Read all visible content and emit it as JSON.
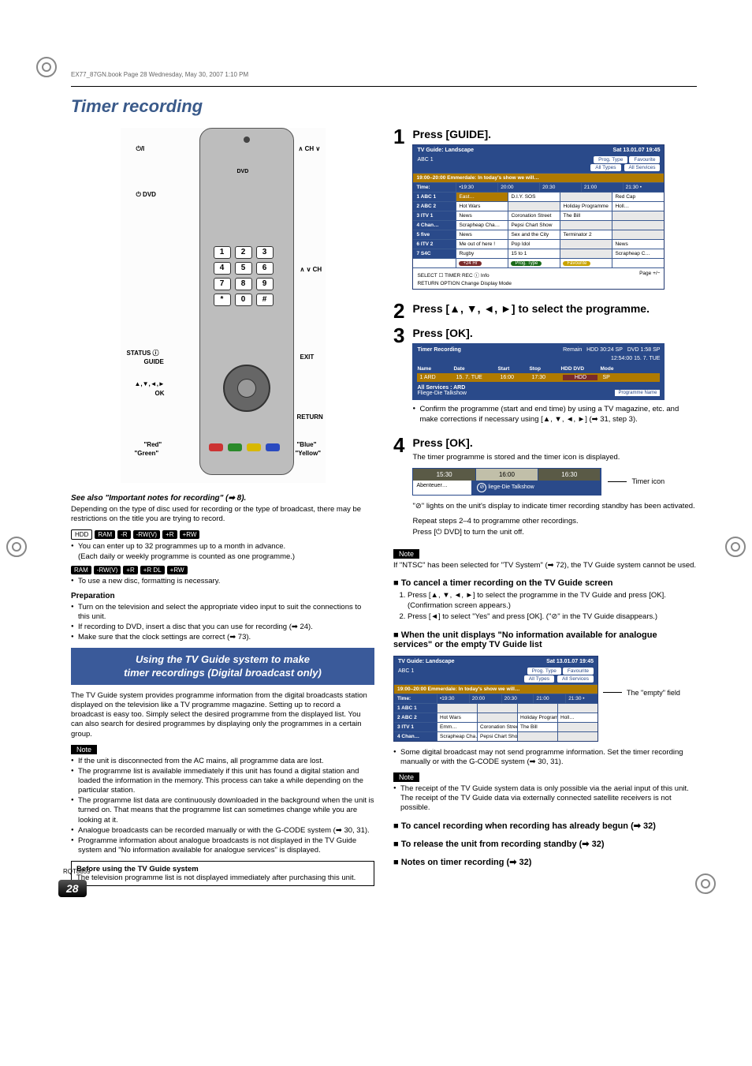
{
  "header_line": "EX77_87GN.book  Page 28  Wednesday, May 30, 2007  1:10 PM",
  "page_title": "Timer recording",
  "page_number": "28",
  "doc_code": "RQT8859",
  "remote": {
    "labels": {
      "power": "⏻/I",
      "ch_top": "∧ CH ∨",
      "dvd": "⏻ DVD",
      "dvd_top": "DVD",
      "ch_right": "∧ ∨ CH",
      "status": "STATUS ⓘ",
      "guide": "GUIDE",
      "exit": "EXIT",
      "dpad": "▲,▼,◄,►",
      "ok": "OK",
      "return": "RETURN",
      "red": "\"Red\"",
      "green": "\"Green\"",
      "blue": "\"Blue\"",
      "yellow": "\"Yellow\""
    }
  },
  "left": {
    "see_also": "See also \"Important notes for recording\" (➡ 8).",
    "intro": "Depending on the type of disc used for recording or the type of broadcast, there may be restrictions on the title you are trying to record.",
    "pills1": [
      "HDD",
      "RAM",
      "-R",
      "-RW(V)",
      "+R",
      "+RW"
    ],
    "pills1_note_a": "You can enter up to 32 programmes up to a month in advance.",
    "pills1_note_b": "(Each daily or weekly programme is counted as one programme.)",
    "pills2": [
      "RAM",
      "-RW(V)",
      "+R",
      "+R DL",
      "+RW"
    ],
    "pills2_note": "To use a new disc, formatting is necessary.",
    "prep_head": "Preparation",
    "prep_items": [
      "Turn on the television and select the appropriate video input to suit the connections to this unit.",
      "If recording to DVD, insert a disc that you can use for recording (➡ 24).",
      "Make sure that the clock settings are correct (➡ 73)."
    ],
    "blue1": "Using the TV Guide system to make",
    "blue2": "timer recordings (Digital broadcast only)",
    "para2": "The TV Guide system provides programme information from the digital broadcasts station displayed on the television like a TV programme magazine. Setting up to record a broadcast is easy too. Simply select the desired programme from the displayed list. You can also search for desired programmes by displaying only the programmes in a certain group.",
    "note1_items": [
      "If the unit is disconnected from the AC mains, all programme data are lost.",
      "The programme list is available immediately if this unit has found a digital station and loaded the information in the memory. This process can take a while depending on the particular station.",
      "The programme list data are continuously downloaded in the background when the unit is turned on. That means that the programme list can sometimes change while you are looking at it.",
      "Analogue broadcasts can be recorded manually or with the G-CODE system (➡ 30, 31).",
      "Programme information about analogue broadcasts is not displayed in the TV Guide system and \"No information available for analogue services\" is displayed."
    ],
    "box_head": "Before using the TV Guide system",
    "box_body": "The television programme list is not displayed immediately after purchasing this unit."
  },
  "steps": {
    "s1": "Press [GUIDE].",
    "s2": "Press [▲, ▼, ◄, ►] to select the programme.",
    "s3": "Press [OK].",
    "s3_note": "Confirm the programme (start and end time) by using a TV magazine, etc. and make corrections if necessary using [▲, ▼, ◄, ►] (➡ 31, step 3).",
    "s4": "Press [OK].",
    "s4_a": "The timer programme is stored and the timer icon is displayed.",
    "s4_b": "\"⊘\" lights on the unit's display to indicate timer recording standby has been activated.",
    "s4_c": "Repeat steps 2–4 to programme other recordings.",
    "s4_d": "Press [⏻ DVD] to turn the unit off.",
    "timer_icon_label": "Timer icon"
  },
  "guide1": {
    "title": "TV Guide: Landscape",
    "date": "Sat 13.01.07 19:45",
    "current": "ABC 1",
    "prog_type": "Prog. Type",
    "all_types": "All Types",
    "fav": "Favourite",
    "all_serv": "All Services",
    "banner": "19:00–20:00 Emmerdale: In today's show we will…",
    "time_label": "Time:",
    "times": [
      "•19:30",
      "20:00",
      "20:30",
      "21:00",
      "21:30 •"
    ],
    "rows": [
      {
        "ch": "1  ABC 1",
        "cells": [
          "East…",
          "D.I.Y. SOS",
          "",
          "Red Cap"
        ]
      },
      {
        "ch": "2  ABC 2",
        "cells": [
          "Hot Wars",
          "",
          "Holiday Programme",
          "Holl…"
        ]
      },
      {
        "ch": "3  ITV 1",
        "cells": [
          "News",
          "Coronation Street",
          "The Bill",
          ""
        ]
      },
      {
        "ch": "4  Chan…",
        "cells": [
          "Scrapheap Cha…",
          "Pepsi Chart Show",
          "",
          ""
        ]
      },
      {
        "ch": "5  five",
        "cells": [
          "News",
          "Sex and the City",
          "Terminator 2",
          ""
        ]
      },
      {
        "ch": "6  ITV 2",
        "cells": [
          "Me out of here !",
          "Pop Idol",
          "",
          "News"
        ]
      },
      {
        "ch": "7  S4C",
        "cells": [
          "Rugby",
          "15 to 1",
          "",
          "Scrapheap C…"
        ]
      }
    ],
    "foot_l": "+24 Hr",
    "foot_c1": "Prog. Type",
    "foot_c2": "Favourite",
    "bottom_l": "SELECT ☐ TIMER REC   ⓘ Info",
    "bottom_r": "Page +/−",
    "bottom_l2": "RETURN   OPTION  Change Display Mode"
  },
  "timer_rec": {
    "title": "Timer Recording",
    "remain": "Remain",
    "hdd": "HDD   30:24 SP",
    "dvd": "DVD   1:58 SP",
    "clock": "12:54:00   15. 7.  TUE",
    "cols": [
      "Name",
      "Date",
      "Start",
      "Stop",
      "HDD DVD",
      "Mode"
    ],
    "row": [
      "1 ARD",
      "15. 7. TUE",
      "16:00",
      "17:30",
      "HDD",
      "SP"
    ],
    "foot1": "All Services : ARD",
    "foot2": "Fliege-Die Talkshow",
    "foot_btn": "Programme Name"
  },
  "sched": {
    "times": [
      "15:30",
      "16:00",
      "16:30"
    ],
    "prog1": "Abenteuer…",
    "prog2": "liege-Die Talkshow"
  },
  "note2_head": "Note",
  "note2_body": "If \"NTSC\" has been selected for \"TV System\" (➡ 72), the TV Guide system cannot be used.",
  "cancel": {
    "head": "To cancel a timer recording on the TV Guide screen",
    "s1": "Press [▲, ▼, ◄, ►] to select the programme in the TV Guide and press [OK].",
    "s1b": "(Confirmation screen appears.)",
    "s2": "Press [◄] to select \"Yes\" and press [OK]. (\"⊘\" in the TV Guide disappears.)"
  },
  "noinfo_head": "When the unit displays \"No information available for analogue services\" or the empty TV Guide list",
  "guide2_empty_label": "The \"empty\" field",
  "noinfo_bullet": "Some digital broadcast may not send programme information. Set the timer recording manually or with the G-CODE system (➡ 30, 31).",
  "note3_body": "The receipt of the TV Guide system data is only possible via the aerial input of this unit. The receipt of the TV Guide data via externally connected satellite receivers is not possible.",
  "tail": {
    "a": "To cancel recording when recording has already begun (➡ 32)",
    "b": "To release the unit from recording standby (➡ 32)",
    "c": "Notes on timer recording (➡ 32)"
  },
  "guide2": {
    "rows": [
      {
        "ch": "1  ABC 1",
        "cells": [
          "",
          "",
          "",
          ""
        ]
      },
      {
        "ch": "2  ABC 2",
        "cells": [
          "Hot Wars",
          "",
          "Holiday Programme",
          "Holl…"
        ]
      },
      {
        "ch": "3  ITV 1",
        "cells": [
          "Emm…",
          "Coronation Street",
          "The Bill",
          ""
        ]
      },
      {
        "ch": "4  Chan…",
        "cells": [
          "Scrapheap Cha…",
          "Pepsi Chart Show",
          "",
          ""
        ]
      }
    ]
  }
}
